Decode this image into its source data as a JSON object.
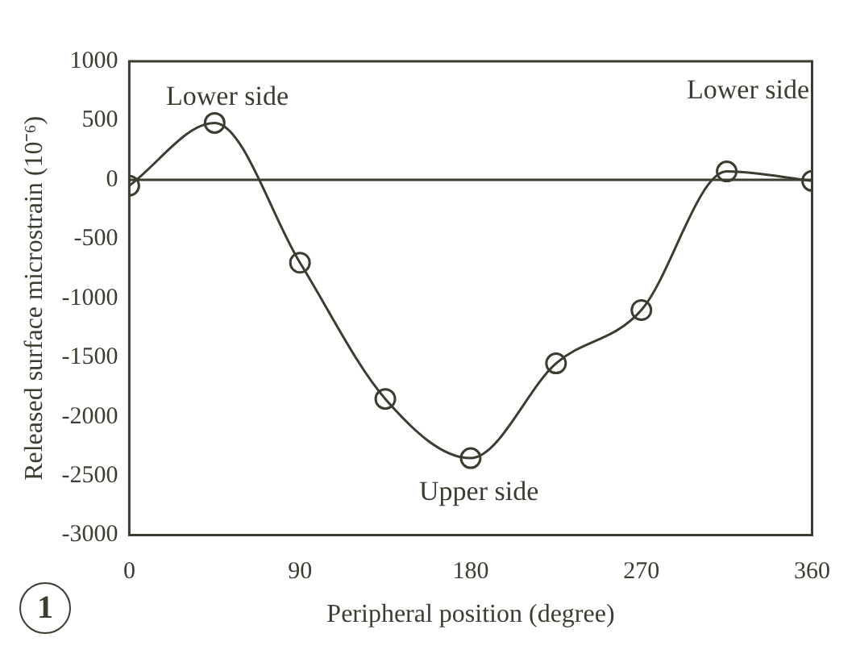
{
  "chart_data": {
    "type": "line",
    "xlabel": "Peripheral position (degree)",
    "ylabel": "Released surface microstrain (10⁻⁶)",
    "x": [
      0,
      45,
      90,
      135,
      180,
      225,
      270,
      315,
      360
    ],
    "series": [
      {
        "color": "#3a3d30",
        "values": [
          -50,
          480,
          -700,
          -1850,
          -2350,
          -1550,
          -1100,
          70,
          -10
        ]
      }
    ],
    "xlim": [
      0,
      360
    ],
    "xticks": [
      0,
      90,
      180,
      270,
      360
    ],
    "ylim": [
      -3000,
      1000
    ],
    "yticks": [
      -3000,
      -2500,
      -2000,
      -1500,
      -1000,
      -500,
      0,
      500,
      1000
    ],
    "marker": "circle",
    "line_style": "solid",
    "grid": false,
    "legend": false,
    "ref_lines": [
      {
        "axis": "y",
        "value": 0,
        "color": "#3a3d30"
      }
    ],
    "annotations": [
      "Lower side",
      "Upper side",
      "Lower side",
      "1"
    ]
  }
}
